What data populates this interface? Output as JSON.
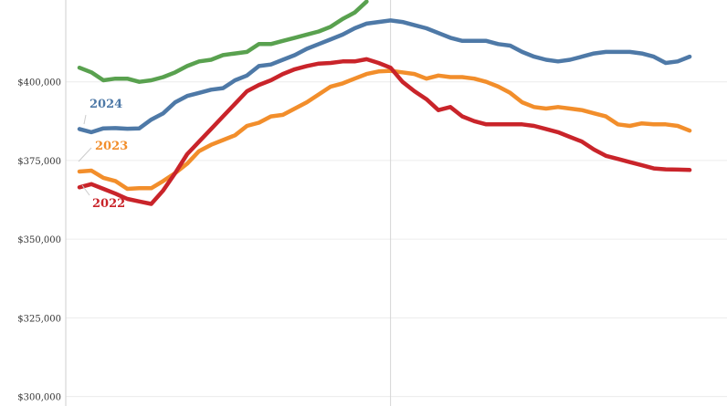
{
  "chart_data": {
    "type": "line",
    "title": "",
    "xlabel": "",
    "ylabel": "",
    "ylim": [
      297000,
      426000
    ],
    "yticks": [
      300000,
      325000,
      350000,
      375000,
      400000
    ],
    "ytick_labels": [
      "$300,000",
      "$325,000",
      "$350,000",
      "$375,000",
      "$400,000"
    ],
    "x_points": 52,
    "divider_week": 26,
    "series": [
      {
        "name": "2024",
        "color": "#4e79a7",
        "values": [
          385000,
          384000,
          385200,
          385300,
          385100,
          385200,
          388000,
          390000,
          393500,
          395500,
          396500,
          397500,
          398000,
          400500,
          402000,
          405000,
          405500,
          407000,
          408500,
          410500,
          412000,
          413500,
          415000,
          417000,
          418500,
          419000,
          419500,
          419000,
          418000,
          417000,
          415500,
          414000,
          413000,
          413000,
          413000,
          412000,
          411500,
          409500,
          408000,
          407000,
          406500,
          407000,
          408000,
          409000,
          409500,
          409500,
          409500,
          409000,
          408000,
          406000,
          406500,
          408000
        ]
      },
      {
        "name": "2023",
        "color": "#f28e2b",
        "values": [
          371500,
          371800,
          369500,
          368500,
          366000,
          366200,
          366200,
          368500,
          371000,
          374000,
          378000,
          380000,
          381500,
          383000,
          386000,
          387000,
          389000,
          389500,
          391500,
          393500,
          396000,
          398500,
          399500,
          401000,
          402500,
          403300,
          403500,
          403000,
          402500,
          401000,
          402000,
          401500,
          401500,
          401000,
          400000,
          398500,
          396500,
          393500,
          392000,
          391500,
          392000,
          391500,
          391000,
          390000,
          389000,
          386500,
          386000,
          386800,
          386500,
          386500,
          386000,
          384500
        ]
      },
      {
        "name": "2022",
        "color": "#c9242a",
        "values": [
          366500,
          367500,
          366000,
          364500,
          362800,
          362000,
          361200,
          365500,
          371000,
          377000,
          381000,
          385000,
          389000,
          393000,
          397000,
          399000,
          400500,
          402500,
          404000,
          405000,
          405800,
          406000,
          406500,
          406500,
          407200,
          406000,
          404500,
          400000,
          397000,
          394500,
          391000,
          392000,
          389000,
          387500,
          386500,
          386500,
          386500,
          386500,
          386000,
          385000,
          384000,
          382500,
          381000,
          378500,
          376500,
          375500,
          374500,
          373500,
          372500,
          372200,
          372100,
          372000
        ]
      },
      {
        "name": "",
        "color": "#59a14f",
        "values": [
          404500,
          403000,
          400500,
          401000,
          401000,
          400000,
          400500,
          401500,
          403000,
          405000,
          406500,
          407000,
          408500,
          409000,
          409500,
          412000,
          412000,
          413000,
          414000,
          415000,
          416000,
          417500,
          420000,
          422000,
          425500
        ]
      }
    ]
  }
}
